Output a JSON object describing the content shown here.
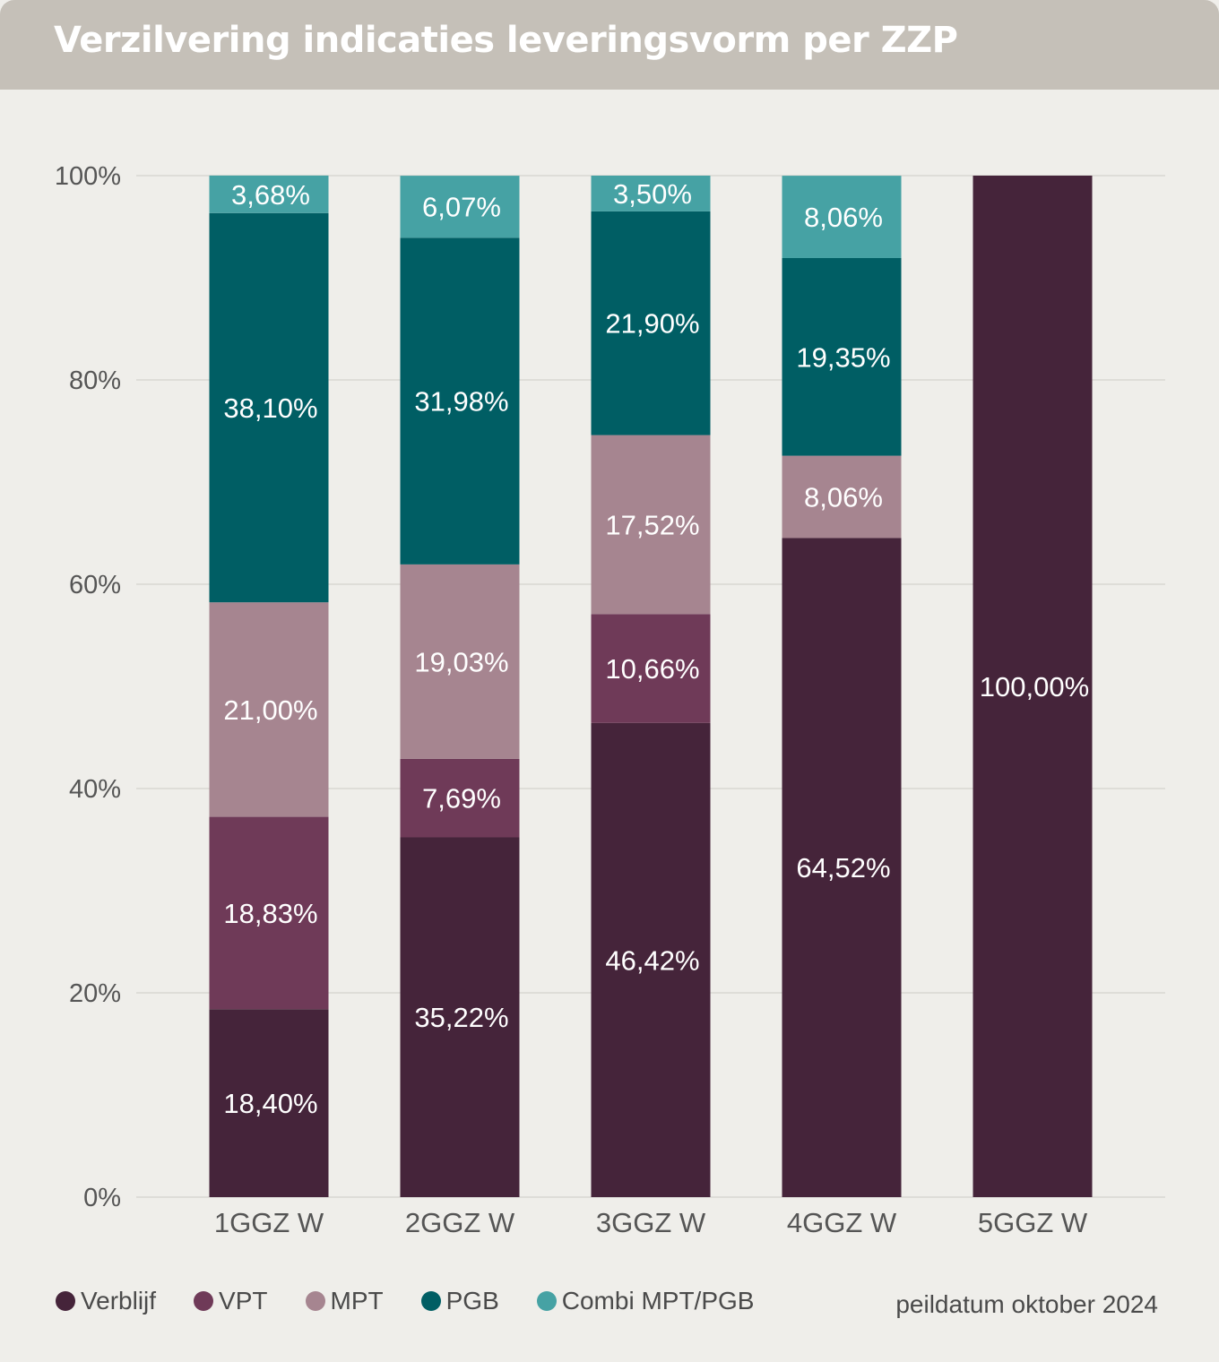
{
  "title": "Verzilvering indicaties leveringsvorm per ZZP",
  "note": "peildatum oktober 2024",
  "chart_data": {
    "type": "bar",
    "stacked": true,
    "categories": [
      "1GGZ W",
      "2GGZ W",
      "3GGZ W",
      "4GGZ W",
      "5GGZ W"
    ],
    "ylim": [
      0,
      100
    ],
    "yticks": [
      "0%",
      "20%",
      "40%",
      "60%",
      "80%",
      "100%"
    ],
    "grid": true,
    "legend_position": "bottom-left",
    "series": [
      {
        "name": "Verblijf",
        "color": "#45243a",
        "values": [
          18.4,
          35.22,
          46.42,
          64.52,
          100.0
        ],
        "labels": [
          "18,40%",
          "35,22%",
          "46,42%",
          "64,52%",
          "100,00%"
        ]
      },
      {
        "name": "VPT",
        "color": "#6f3a58",
        "values": [
          18.83,
          7.69,
          10.66,
          0,
          0
        ],
        "labels": [
          "18,83%",
          "7,69%",
          "10,66%",
          "",
          ""
        ]
      },
      {
        "name": "MPT",
        "color": "#a68590",
        "values": [
          21.0,
          19.03,
          17.52,
          8.06,
          0
        ],
        "labels": [
          "21,00%",
          "19,03%",
          "17,52%",
          "8,06%",
          ""
        ]
      },
      {
        "name": "PGB",
        "color": "#005e64",
        "values": [
          38.1,
          31.98,
          21.9,
          19.35,
          0
        ],
        "labels": [
          "38,10%",
          "31,98%",
          "21,90%",
          "19,35%",
          ""
        ]
      },
      {
        "name": "Combi MPT/PGB",
        "color": "#46a2a4",
        "values": [
          3.68,
          6.07,
          3.5,
          8.06,
          0
        ],
        "labels": [
          "3,68%",
          "6,07%",
          "3,50%",
          "8,06%",
          ""
        ]
      }
    ]
  }
}
